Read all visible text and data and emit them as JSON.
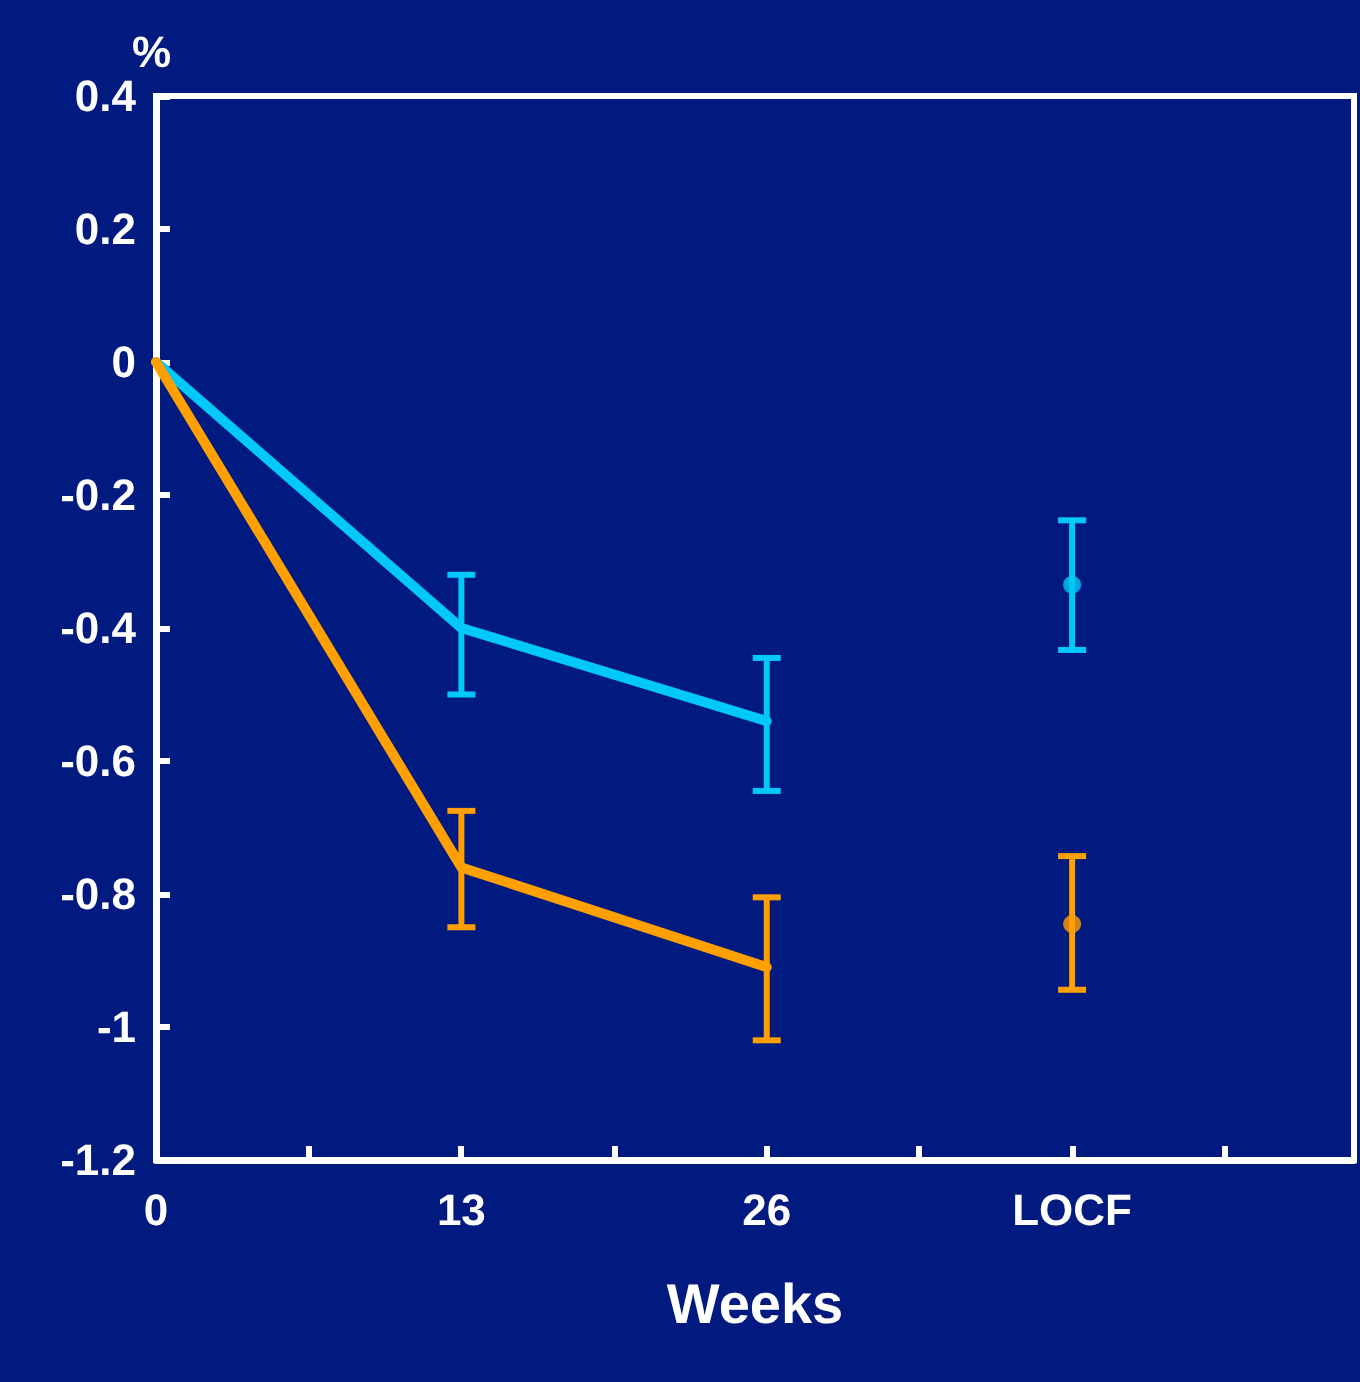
{
  "chart_data": {
    "type": "line",
    "xlabel": "Weeks",
    "ylabel": "%",
    "x": [
      0,
      13,
      26
    ],
    "xlim": [
      0,
      51
    ],
    "xticks": [
      0,
      {
        "value": 6.5,
        "label": null
      },
      13,
      {
        "value": 19.5,
        "label": null
      },
      26,
      {
        "value": 32.5,
        "label": null
      },
      {
        "value": 39,
        "label": "LOCF"
      },
      {
        "value": 45.5,
        "label": null
      }
    ],
    "ylim": [
      -1.2,
      0.4
    ],
    "yticks": [
      -1.2,
      -1,
      -0.8,
      -0.6,
      -0.4,
      -0.2,
      0,
      0.2,
      0.4
    ],
    "grid": false,
    "marker": "none",
    "line_style": "solid",
    "series": [
      {
        "color": "#00c8f8",
        "values": [
          0,
          -0.4,
          -0.54
        ],
        "errors": [
          null,
          [
            -0.5,
            -0.32
          ],
          [
            -0.645,
            -0.445
          ]
        ]
      },
      {
        "color": "#ffa000",
        "values": [
          0,
          -0.76,
          -0.91
        ],
        "errors": [
          null,
          [
            -0.85,
            -0.675
          ],
          [
            -1.02,
            -0.805
          ]
        ]
      },
      {
        "type": "scatter",
        "marker": "circle",
        "color": "#00c8f8",
        "x": [
          39
        ],
        "values": [
          -0.335
        ],
        "errors": [
          [
            -0.433,
            -0.238
          ]
        ]
      },
      {
        "type": "scatter",
        "marker": "circle",
        "color": "#ffa000",
        "x": [
          39
        ],
        "values": [
          -0.845
        ],
        "errors": [
          [
            -0.944,
            -0.743
          ]
        ]
      }
    ]
  }
}
